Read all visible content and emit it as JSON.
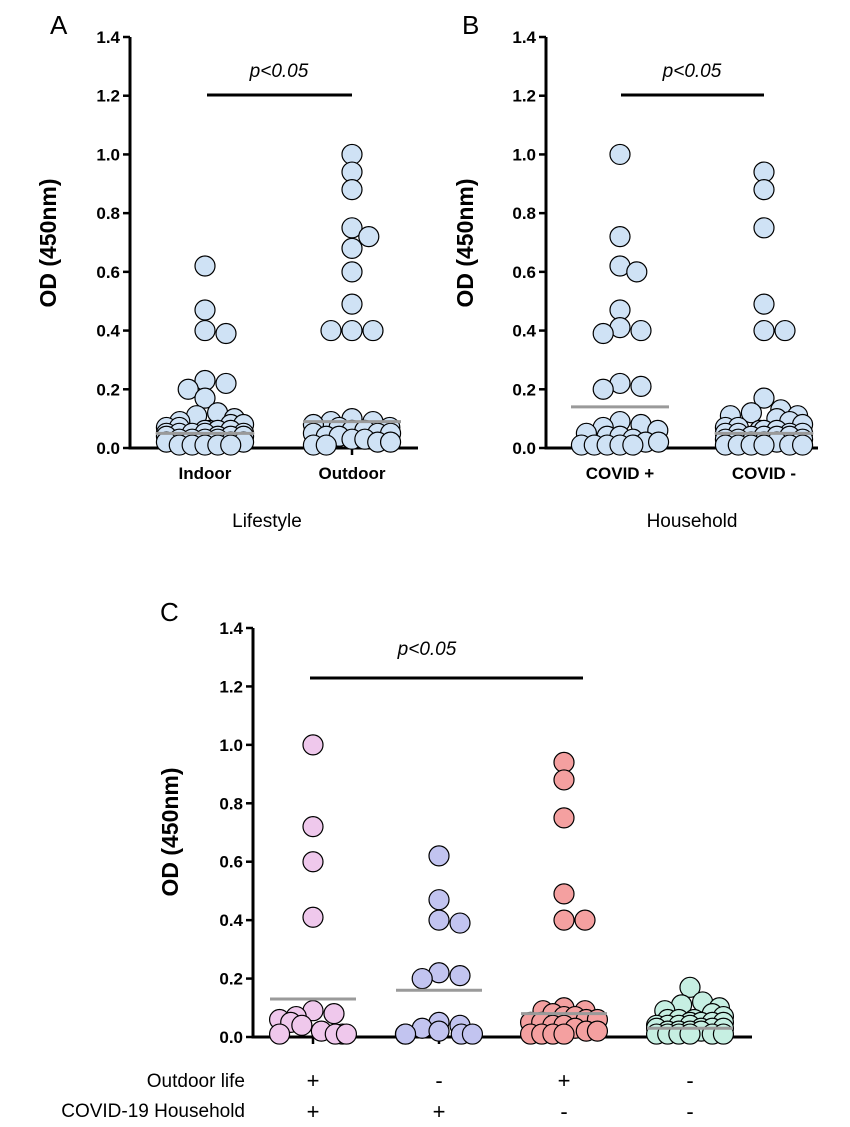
{
  "chart_data": [
    {
      "panel": "A",
      "type": "scatter",
      "ylabel": "OD (450nm)",
      "xlabel": "Lifestyle",
      "ylim": [
        0,
        1.4
      ],
      "yticks": [
        "0.0",
        "0.2",
        "0.4",
        "0.6",
        "0.8",
        "1.0",
        "1.2",
        "1.4"
      ],
      "categories": [
        "Indoor",
        "Outdoor"
      ],
      "significance": "p<0.05",
      "series": [
        {
          "name": "Indoor",
          "color": "#cfe2f5",
          "median": 0.05,
          "values": [
            0.62,
            0.47,
            0.4,
            0.39,
            0.23,
            0.22,
            0.2,
            0.17,
            0.12,
            0.11,
            0.1,
            0.09,
            0.08,
            0.08,
            0.07,
            0.07,
            0.06,
            0.06,
            0.06,
            0.06,
            0.05,
            0.05,
            0.05,
            0.05,
            0.05,
            0.04,
            0.04,
            0.04,
            0.04,
            0.03,
            0.03,
            0.03,
            0.03,
            0.02,
            0.02,
            0.02,
            0.01,
            0.01,
            0.01,
            0.01,
            0.01
          ]
        },
        {
          "name": "Outdoor",
          "color": "#cfe2f5",
          "median": 0.09,
          "values": [
            1.0,
            0.94,
            0.88,
            0.75,
            0.72,
            0.68,
            0.6,
            0.49,
            0.4,
            0.4,
            0.4,
            0.1,
            0.09,
            0.09,
            0.08,
            0.07,
            0.07,
            0.06,
            0.06,
            0.05,
            0.05,
            0.05,
            0.04,
            0.04,
            0.03,
            0.03,
            0.02,
            0.02,
            0.01,
            0.01
          ]
        }
      ]
    },
    {
      "panel": "B",
      "type": "scatter",
      "ylabel": "OD (450nm)",
      "xlabel": "Household",
      "ylim": [
        0,
        1.4
      ],
      "yticks": [
        "0.0",
        "0.2",
        "0.4",
        "0.6",
        "0.8",
        "1.0",
        "1.2",
        "1.4"
      ],
      "categories": [
        "COVID +",
        "COVID -"
      ],
      "significance": "p<0.05",
      "series": [
        {
          "name": "COVID +",
          "color": "#cfe2f5",
          "median": 0.14,
          "values": [
            1.0,
            0.72,
            0.62,
            0.6,
            0.47,
            0.41,
            0.4,
            0.39,
            0.22,
            0.21,
            0.2,
            0.09,
            0.08,
            0.07,
            0.06,
            0.05,
            0.04,
            0.04,
            0.03,
            0.02,
            0.02,
            0.01,
            0.01,
            0.01,
            0.01,
            0.01
          ]
        },
        {
          "name": "COVID -",
          "color": "#cfe2f5",
          "median": 0.05,
          "values": [
            0.94,
            0.88,
            0.75,
            0.49,
            0.4,
            0.4,
            0.17,
            0.13,
            0.12,
            0.11,
            0.11,
            0.1,
            0.09,
            0.08,
            0.07,
            0.07,
            0.06,
            0.06,
            0.06,
            0.05,
            0.05,
            0.05,
            0.05,
            0.04,
            0.04,
            0.04,
            0.04,
            0.03,
            0.03,
            0.03,
            0.02,
            0.02,
            0.02,
            0.01,
            0.01,
            0.01,
            0.01,
            0.01,
            0.01
          ]
        }
      ]
    },
    {
      "panel": "C",
      "type": "scatter",
      "ylabel": "OD (450nm)",
      "ylim": [
        0,
        1.4
      ],
      "yticks": [
        "0.0",
        "0.2",
        "0.4",
        "0.6",
        "0.8",
        "1.0",
        "1.2",
        "1.4"
      ],
      "significance": "p<0.05",
      "row_labels": [
        "Outdoor life",
        "COVID-19 Household"
      ],
      "outdoor_life_signs": [
        "+",
        "-",
        "+",
        "-"
      ],
      "household_signs": [
        "+",
        "+",
        "-",
        "-"
      ],
      "series": [
        {
          "name": "Outdoor+ / Household+",
          "color": "#efc8ec",
          "median": 0.13,
          "values": [
            1.0,
            0.72,
            0.6,
            0.41,
            0.09,
            0.08,
            0.07,
            0.06,
            0.05,
            0.04,
            0.02,
            0.01,
            0.01,
            0.01,
            0.01
          ]
        },
        {
          "name": "Outdoor- / Household+",
          "color": "#c2c4f0",
          "median": 0.16,
          "values": [
            0.62,
            0.47,
            0.4,
            0.39,
            0.22,
            0.21,
            0.2,
            0.05,
            0.04,
            0.03,
            0.02,
            0.01,
            0.01,
            0.01,
            0.01
          ]
        },
        {
          "name": "Outdoor+ / Household-",
          "color": "#f4a0a0",
          "median": 0.08,
          "values": [
            0.94,
            0.88,
            0.75,
            0.49,
            0.4,
            0.4,
            0.1,
            0.09,
            0.09,
            0.08,
            0.07,
            0.07,
            0.06,
            0.06,
            0.05,
            0.05,
            0.04,
            0.04,
            0.03,
            0.02,
            0.02,
            0.01,
            0.01,
            0.01,
            0.01
          ]
        },
        {
          "name": "Outdoor- / Household-",
          "color": "#c6efe2",
          "median": 0.03,
          "values": [
            0.17,
            0.12,
            0.11,
            0.1,
            0.09,
            0.08,
            0.07,
            0.06,
            0.06,
            0.06,
            0.05,
            0.05,
            0.05,
            0.05,
            0.04,
            0.04,
            0.04,
            0.04,
            0.03,
            0.03,
            0.03,
            0.03,
            0.02,
            0.02,
            0.02,
            0.02,
            0.01,
            0.01,
            0.01,
            0.01,
            0.01,
            0.01
          ]
        }
      ]
    }
  ]
}
